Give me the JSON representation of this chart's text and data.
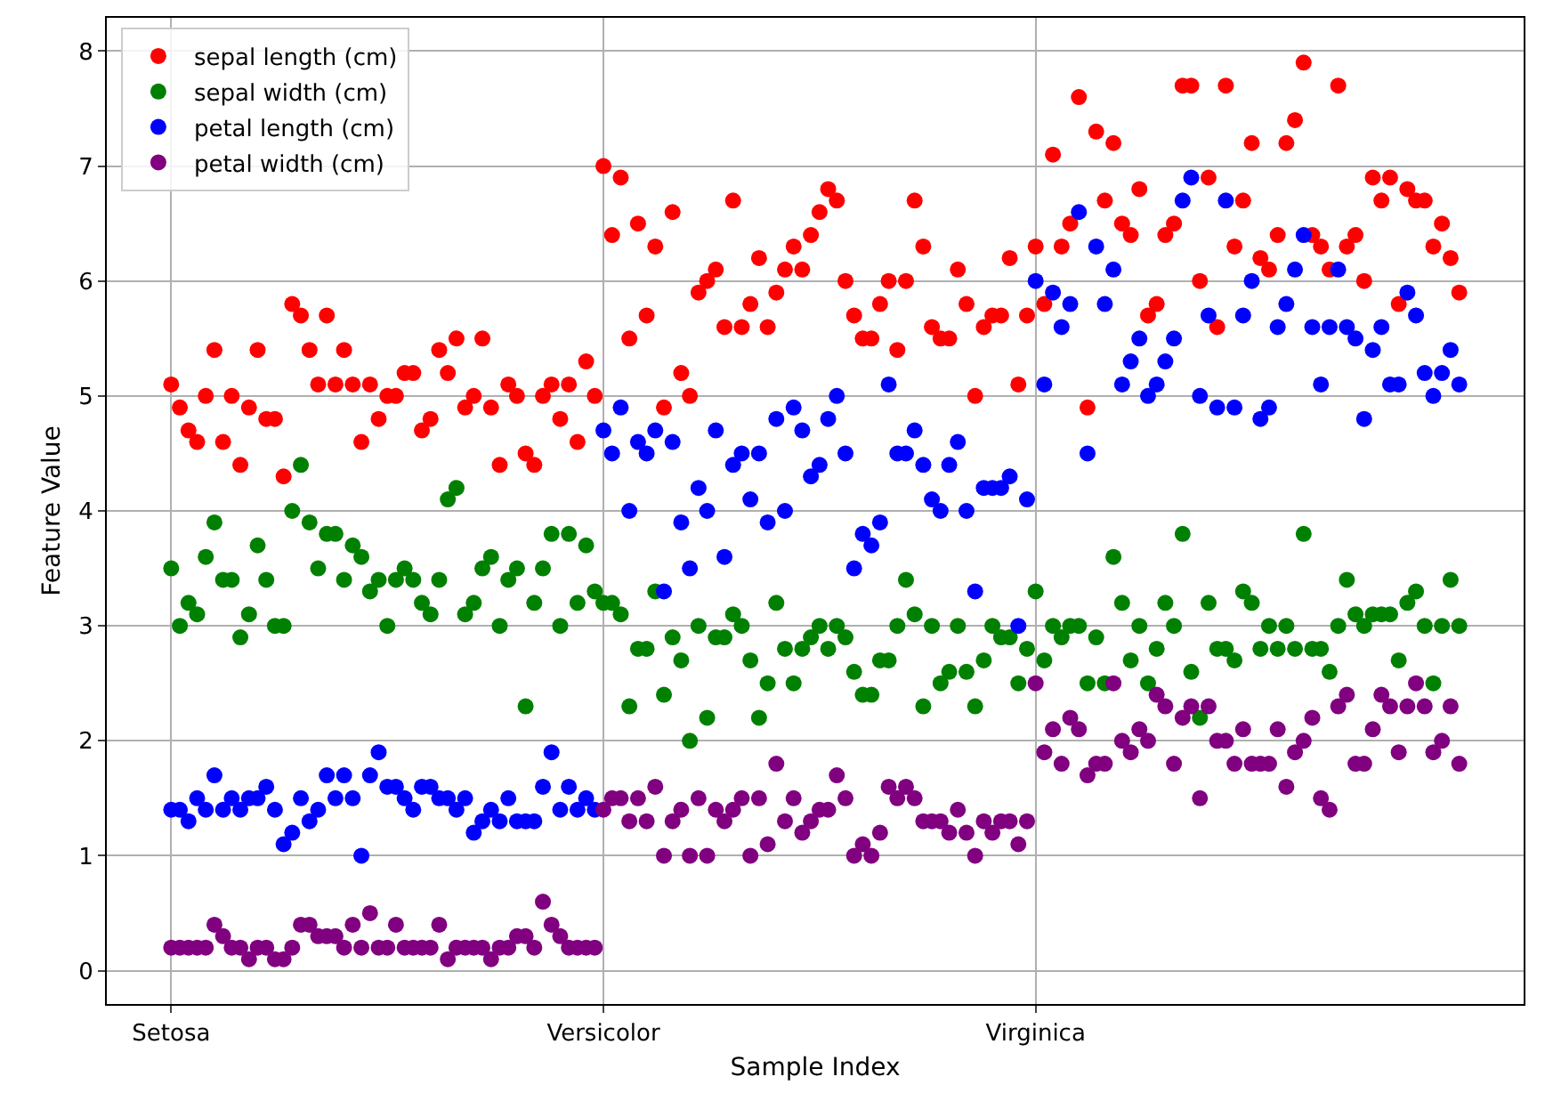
{
  "chart_data": {
    "type": "scatter",
    "xlabel": "Sample Index",
    "ylabel": "Feature Value",
    "categories": [
      "Setosa",
      null,
      null,
      null,
      null,
      null,
      null,
      null,
      null,
      null,
      null,
      null,
      null,
      null,
      null,
      null,
      null,
      null,
      null,
      null,
      null,
      null,
      null,
      null,
      null,
      null,
      null,
      null,
      null,
      null,
      null,
      null,
      null,
      null,
      null,
      null,
      null,
      null,
      null,
      null,
      null,
      null,
      null,
      null,
      null,
      null,
      null,
      null,
      null,
      null,
      "Versicolor",
      null,
      null,
      null,
      null,
      null,
      null,
      null,
      null,
      null,
      null,
      null,
      null,
      null,
      null,
      null,
      null,
      null,
      null,
      null,
      null,
      null,
      null,
      null,
      null,
      null,
      null,
      null,
      null,
      null,
      null,
      null,
      null,
      null,
      null,
      null,
      null,
      null,
      null,
      null,
      null,
      null,
      null,
      null,
      null,
      null,
      null,
      null,
      null,
      null,
      "Virginica",
      null,
      null,
      null,
      null,
      null,
      null,
      null,
      null,
      null,
      null,
      null,
      null,
      null,
      null,
      null,
      null,
      null,
      null,
      null,
      null,
      null,
      null,
      null,
      null,
      null,
      null,
      null,
      null,
      null,
      null,
      null,
      null,
      null,
      null,
      null,
      null,
      null,
      null,
      null,
      null,
      null,
      null,
      null,
      null,
      null,
      null,
      null,
      null,
      null
    ],
    "ylim": [
      -0.29,
      8.29
    ],
    "yticks": [
      0,
      1,
      2,
      3,
      4,
      5,
      6,
      7,
      8
    ],
    "grid": true,
    "legend": "top left",
    "marker": "circle",
    "series": [
      {
        "name": "sepal length (cm)",
        "color": "#ff0000",
        "values": [
          5.1,
          4.9,
          4.7,
          4.6,
          5.0,
          5.4,
          4.6,
          5.0,
          4.4,
          4.9,
          5.4,
          4.8,
          4.8,
          4.3,
          5.8,
          5.7,
          5.4,
          5.1,
          5.7,
          5.1,
          5.4,
          5.1,
          4.6,
          5.1,
          4.8,
          5.0,
          5.0,
          5.2,
          5.2,
          4.7,
          4.8,
          5.4,
          5.2,
          5.5,
          4.9,
          5.0,
          5.5,
          4.9,
          4.4,
          5.1,
          5.0,
          4.5,
          4.4,
          5.0,
          5.1,
          4.8,
          5.1,
          4.6,
          5.3,
          5.0,
          7.0,
          6.4,
          6.9,
          5.5,
          6.5,
          5.7,
          6.3,
          4.9,
          6.6,
          5.2,
          5.0,
          5.9,
          6.0,
          6.1,
          5.6,
          6.7,
          5.6,
          5.8,
          6.2,
          5.6,
          5.9,
          6.1,
          6.3,
          6.1,
          6.4,
          6.6,
          6.8,
          6.7,
          6.0,
          5.7,
          5.5,
          5.5,
          5.8,
          6.0,
          5.4,
          6.0,
          6.7,
          6.3,
          5.6,
          5.5,
          5.5,
          6.1,
          5.8,
          5.0,
          5.6,
          5.7,
          5.7,
          6.2,
          5.1,
          5.7,
          6.3,
          5.8,
          7.1,
          6.3,
          6.5,
          7.6,
          4.9,
          7.3,
          6.7,
          7.2,
          6.5,
          6.4,
          6.8,
          5.7,
          5.8,
          6.4,
          6.5,
          7.7,
          7.7,
          6.0,
          6.9,
          5.6,
          7.7,
          6.3,
          6.7,
          7.2,
          6.2,
          6.1,
          6.4,
          7.2,
          7.4,
          7.9,
          6.4,
          6.3,
          6.1,
          7.7,
          6.3,
          6.4,
          6.0,
          6.9,
          6.7,
          6.9,
          5.8,
          6.8,
          6.7,
          6.7,
          6.3,
          6.5,
          6.2,
          5.9
        ]
      },
      {
        "name": "sepal width (cm)",
        "color": "#008000",
        "values": [
          3.5,
          3.0,
          3.2,
          3.1,
          3.6,
          3.9,
          3.4,
          3.4,
          2.9,
          3.1,
          3.7,
          3.4,
          3.0,
          3.0,
          4.0,
          4.4,
          3.9,
          3.5,
          3.8,
          3.8,
          3.4,
          3.7,
          3.6,
          3.3,
          3.4,
          3.0,
          3.4,
          3.5,
          3.4,
          3.2,
          3.1,
          3.4,
          4.1,
          4.2,
          3.1,
          3.2,
          3.5,
          3.6,
          3.0,
          3.4,
          3.5,
          2.3,
          3.2,
          3.5,
          3.8,
          3.0,
          3.8,
          3.2,
          3.7,
          3.3,
          3.2,
          3.2,
          3.1,
          2.3,
          2.8,
          2.8,
          3.3,
          2.4,
          2.9,
          2.7,
          2.0,
          3.0,
          2.2,
          2.9,
          2.9,
          3.1,
          3.0,
          2.7,
          2.2,
          2.5,
          3.2,
          2.8,
          2.5,
          2.8,
          2.9,
          3.0,
          2.8,
          3.0,
          2.9,
          2.6,
          2.4,
          2.4,
          2.7,
          2.7,
          3.0,
          3.4,
          3.1,
          2.3,
          3.0,
          2.5,
          2.6,
          3.0,
          2.6,
          2.3,
          2.7,
          3.0,
          2.9,
          2.9,
          2.5,
          2.8,
          3.3,
          2.7,
          3.0,
          2.9,
          3.0,
          3.0,
          2.5,
          2.9,
          2.5,
          3.6,
          3.2,
          2.7,
          3.0,
          2.5,
          2.8,
          3.2,
          3.0,
          3.8,
          2.6,
          2.2,
          3.2,
          2.8,
          2.8,
          2.7,
          3.3,
          3.2,
          2.8,
          3.0,
          2.8,
          3.0,
          2.8,
          3.8,
          2.8,
          2.8,
          2.6,
          3.0,
          3.4,
          3.1,
          3.0,
          3.1,
          3.1,
          3.1,
          2.7,
          3.2,
          3.3,
          3.0,
          2.5,
          3.0,
          3.4,
          3.0
        ]
      },
      {
        "name": "petal length (cm)",
        "color": "#0000ff",
        "values": [
          1.4,
          1.4,
          1.3,
          1.5,
          1.4,
          1.7,
          1.4,
          1.5,
          1.4,
          1.5,
          1.5,
          1.6,
          1.4,
          1.1,
          1.2,
          1.5,
          1.3,
          1.4,
          1.7,
          1.5,
          1.7,
          1.5,
          1.0,
          1.7,
          1.9,
          1.6,
          1.6,
          1.5,
          1.4,
          1.6,
          1.6,
          1.5,
          1.5,
          1.4,
          1.5,
          1.2,
          1.3,
          1.4,
          1.3,
          1.5,
          1.3,
          1.3,
          1.3,
          1.6,
          1.9,
          1.4,
          1.6,
          1.4,
          1.5,
          1.4,
          4.7,
          4.5,
          4.9,
          4.0,
          4.6,
          4.5,
          4.7,
          3.3,
          4.6,
          3.9,
          3.5,
          4.2,
          4.0,
          4.7,
          3.6,
          4.4,
          4.5,
          4.1,
          4.5,
          3.9,
          4.8,
          4.0,
          4.9,
          4.7,
          4.3,
          4.4,
          4.8,
          5.0,
          4.5,
          3.5,
          3.8,
          3.7,
          3.9,
          5.1,
          4.5,
          4.5,
          4.7,
          4.4,
          4.1,
          4.0,
          4.4,
          4.6,
          4.0,
          3.3,
          4.2,
          4.2,
          4.2,
          4.3,
          3.0,
          4.1,
          6.0,
          5.1,
          5.9,
          5.6,
          5.8,
          6.6,
          4.5,
          6.3,
          5.8,
          6.1,
          5.1,
          5.3,
          5.5,
          5.0,
          5.1,
          5.3,
          5.5,
          6.7,
          6.9,
          5.0,
          5.7,
          4.9,
          6.7,
          4.9,
          5.7,
          6.0,
          4.8,
          4.9,
          5.6,
          5.8,
          6.1,
          6.4,
          5.6,
          5.1,
          5.6,
          6.1,
          5.6,
          5.5,
          4.8,
          5.4,
          5.6,
          5.1,
          5.1,
          5.9,
          5.7,
          5.2,
          5.0,
          5.2,
          5.4,
          5.1
        ]
      },
      {
        "name": "petal width (cm)",
        "color": "#800080",
        "values": [
          0.2,
          0.2,
          0.2,
          0.2,
          0.2,
          0.4,
          0.3,
          0.2,
          0.2,
          0.1,
          0.2,
          0.2,
          0.1,
          0.1,
          0.2,
          0.4,
          0.4,
          0.3,
          0.3,
          0.3,
          0.2,
          0.4,
          0.2,
          0.5,
          0.2,
          0.2,
          0.4,
          0.2,
          0.2,
          0.2,
          0.2,
          0.4,
          0.1,
          0.2,
          0.2,
          0.2,
          0.2,
          0.1,
          0.2,
          0.2,
          0.3,
          0.3,
          0.2,
          0.6,
          0.4,
          0.3,
          0.2,
          0.2,
          0.2,
          0.2,
          1.4,
          1.5,
          1.5,
          1.3,
          1.5,
          1.3,
          1.6,
          1.0,
          1.3,
          1.4,
          1.0,
          1.5,
          1.0,
          1.4,
          1.3,
          1.4,
          1.5,
          1.0,
          1.5,
          1.1,
          1.8,
          1.3,
          1.5,
          1.2,
          1.3,
          1.4,
          1.4,
          1.7,
          1.5,
          1.0,
          1.1,
          1.0,
          1.2,
          1.6,
          1.5,
          1.6,
          1.5,
          1.3,
          1.3,
          1.3,
          1.2,
          1.4,
          1.2,
          1.0,
          1.3,
          1.2,
          1.3,
          1.3,
          1.1,
          1.3,
          2.5,
          1.9,
          2.1,
          1.8,
          2.2,
          2.1,
          1.7,
          1.8,
          1.8,
          2.5,
          2.0,
          1.9,
          2.1,
          2.0,
          2.4,
          2.3,
          1.8,
          2.2,
          2.3,
          1.5,
          2.3,
          2.0,
          2.0,
          1.8,
          2.1,
          1.8,
          1.8,
          1.8,
          2.1,
          1.6,
          1.9,
          2.0,
          2.2,
          1.5,
          1.4,
          2.3,
          2.4,
          1.8,
          1.8,
          2.1,
          2.4,
          2.3,
          1.9,
          2.3,
          2.5,
          2.3,
          1.9,
          2.0,
          2.3,
          1.8
        ]
      }
    ]
  }
}
